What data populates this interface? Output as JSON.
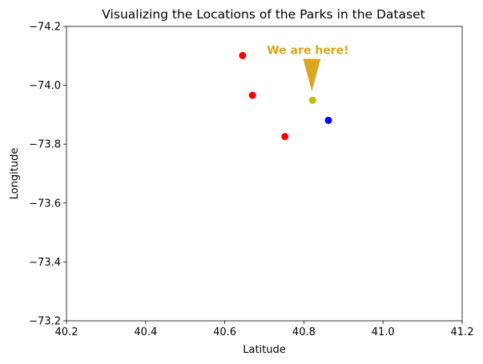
{
  "chart_data": {
    "type": "scatter",
    "title": "Visualizing the Locations of the Parks in the Dataset",
    "xlabel": "Latitude",
    "ylabel": "Longitude",
    "xlim": [
      40.2,
      41.2
    ],
    "ylim": [
      -74.2,
      -73.2
    ],
    "y_inverted": true,
    "xticks": [
      40.2,
      40.4,
      40.6,
      40.8,
      41.0,
      41.2
    ],
    "xtick_labels": [
      "40.2",
      "40.4",
      "40.6",
      "40.8",
      "41.0",
      "41.2"
    ],
    "yticks": [
      -74.2,
      -74.0,
      -73.8,
      -73.6,
      -73.4,
      -73.2
    ],
    "ytick_labels": [
      "−74.2",
      "−74.0",
      "−73.8",
      "−73.6",
      "−73.4",
      "−73.2"
    ],
    "grid": false,
    "points": [
      {
        "x": 40.645,
        "y": -74.101,
        "color": "#ff0000"
      },
      {
        "x": 40.67,
        "y": -73.966,
        "color": "#ff0000"
      },
      {
        "x": 40.752,
        "y": -73.826,
        "color": "#ff0000"
      },
      {
        "x": 40.822,
        "y": -73.949,
        "color": "#bfbf00"
      },
      {
        "x": 40.862,
        "y": -73.881,
        "color": "#0000ff"
      }
    ],
    "annotation": {
      "text": "We are here!",
      "text_x": 40.81,
      "text_y": -74.12,
      "arrow_to_x": 40.82,
      "arrow_to_y": -73.98,
      "color": "#DAA520"
    }
  }
}
